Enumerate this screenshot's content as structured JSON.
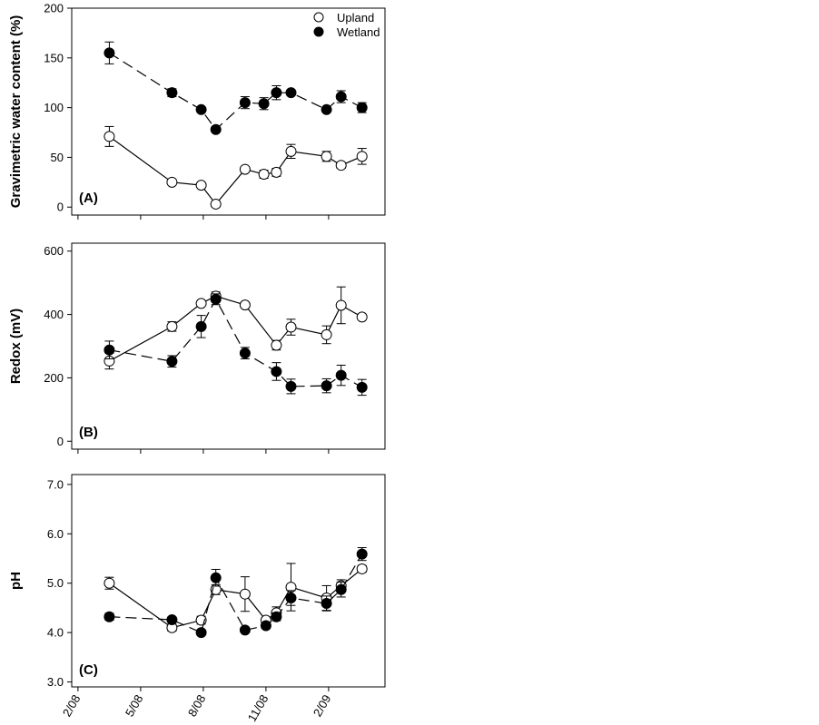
{
  "legend": {
    "upland": "Upland",
    "wetland": "Wetland"
  },
  "x_axis": {
    "tick_labels": [
      "2/08",
      "5/08",
      "8/08",
      "11/08",
      "2/09"
    ],
    "tick_values": [
      0,
      3,
      6,
      9,
      12
    ]
  },
  "chart_data": [
    {
      "type": "line",
      "panel_label": "(A)",
      "ylabel": "Gravimetric water content (%)",
      "ylim": [
        -8,
        200
      ],
      "yticks": [
        0,
        50,
        100,
        150,
        200
      ],
      "ytick_labels": [
        "0",
        "50",
        "100",
        "150",
        "200"
      ],
      "x": [
        1.5,
        4.5,
        5.9,
        6.6,
        8.0,
        8.9,
        9.5,
        10.2,
        11.9,
        12.6,
        13.6
      ],
      "series": [
        {
          "name": "Upland",
          "marker": "open-circle",
          "line": "solid",
          "values": [
            71,
            25,
            22,
            3,
            38,
            33,
            35,
            56,
            51,
            42,
            51
          ],
          "errors": [
            10,
            0,
            0,
            0,
            2,
            4,
            4,
            7,
            5,
            3,
            8
          ]
        },
        {
          "name": "Wetland",
          "marker": "filled-circle",
          "line": "dashed",
          "values": [
            155,
            115,
            98,
            78,
            105,
            104,
            115,
            115,
            98,
            111,
            100
          ],
          "errors": [
            11,
            4,
            0,
            0,
            6,
            6,
            7,
            0,
            0,
            6,
            5
          ]
        }
      ]
    },
    {
      "type": "line",
      "panel_label": "(B)",
      "ylabel": "Redox (mV)",
      "ylim": [
        -25,
        625
      ],
      "yticks": [
        0,
        200,
        400,
        600
      ],
      "ytick_labels": [
        "0",
        "200",
        "400",
        "600"
      ],
      "x": [
        1.5,
        4.5,
        5.9,
        6.6,
        8.0,
        9.5,
        10.2,
        11.9,
        12.6,
        13.6
      ],
      "series": [
        {
          "name": "Upland",
          "marker": "open-circle",
          "line": "solid",
          "values": [
            253,
            362,
            435,
            458,
            430,
            303,
            360,
            336,
            429,
            392
          ],
          "errors": [
            25,
            15,
            0,
            13,
            0,
            15,
            25,
            28,
            58,
            0
          ]
        },
        {
          "name": "Wetland",
          "marker": "filled-circle",
          "line": "dashed",
          "values": [
            288,
            252,
            362,
            448,
            278,
            220,
            173,
            175,
            208,
            170
          ],
          "errors": [
            28,
            18,
            35,
            17,
            18,
            28,
            23,
            22,
            32,
            25
          ]
        }
      ]
    },
    {
      "type": "line",
      "panel_label": "(C)",
      "ylabel": "pH",
      "ylim": [
        2.9,
        7.2
      ],
      "yticks": [
        3.0,
        4.0,
        5.0,
        6.0,
        7.0
      ],
      "ytick_labels": [
        "3.0",
        "4.0",
        "5.0",
        "6.0",
        "7.0"
      ],
      "x": [
        1.5,
        4.5,
        5.9,
        6.6,
        8.0,
        9.0,
        9.5,
        10.2,
        11.9,
        12.6,
        13.6
      ],
      "series": [
        {
          "name": "Upland",
          "marker": "open-circle",
          "line": "solid",
          "values": [
            5.0,
            4.1,
            4.25,
            4.87,
            4.78,
            4.25,
            4.4,
            4.92,
            4.7,
            4.95,
            5.29
          ],
          "errors": [
            0.12,
            0.07,
            0.08,
            0.1,
            0.35,
            0.05,
            0.12,
            0.48,
            0.25,
            0.12,
            0.07
          ]
        },
        {
          "name": "Wetland",
          "marker": "filled-circle",
          "line": "dashed",
          "values": [
            4.32,
            4.26,
            4.0,
            5.11,
            4.05,
            4.14,
            4.32,
            4.7,
            4.59,
            4.87,
            5.59
          ],
          "errors": [
            0.07,
            0.05,
            0,
            0.17,
            0,
            0.05,
            0.08,
            0.15,
            0.15,
            0.15,
            0.13
          ]
        }
      ]
    }
  ]
}
